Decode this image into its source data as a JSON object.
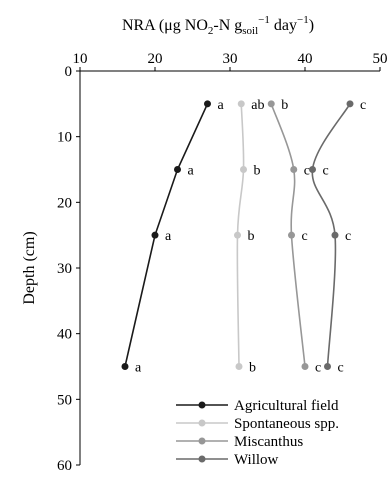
{
  "chart_data": {
    "type": "line",
    "title": "",
    "xlabel_parts": {
      "prefix": "NRA (μg NO",
      "sub1": "2",
      "mid": "-N g",
      "sub2": "soil",
      "sup": "−1",
      "suffix": " day",
      "sup2": "−1",
      "end": ")"
    },
    "ylabel": "Depth (cm)",
    "xlim": [
      10,
      50
    ],
    "ylim": [
      0,
      60
    ],
    "y_inverted": true,
    "x_axis_position": "top",
    "xticks": [
      10,
      20,
      30,
      40,
      50
    ],
    "yticks": [
      0,
      10,
      20,
      30,
      40,
      50,
      60
    ],
    "grid": false,
    "legend_position": "bottom-right",
    "depths": [
      5,
      15,
      25,
      45
    ],
    "series": [
      {
        "name": "Agricultural field",
        "color": "#1a1a1a",
        "values": [
          27,
          23,
          20,
          16
        ],
        "letters": [
          "a",
          "a",
          "a",
          "a"
        ]
      },
      {
        "name": "Spontaneous spp.",
        "color": "#c8c8c8",
        "values": [
          31.5,
          31.8,
          31,
          31.2
        ],
        "letters": [
          "ab",
          "b",
          "b",
          "b"
        ]
      },
      {
        "name": "Miscanthus",
        "color": "#979797",
        "values": [
          35.5,
          38.5,
          38.2,
          40
        ],
        "letters": [
          "b",
          "c",
          "c",
          "c"
        ]
      },
      {
        "name": "Willow",
        "color": "#6a6a6a",
        "values": [
          46,
          41,
          44,
          43
        ],
        "letters": [
          "c",
          "c",
          "c",
          "c"
        ]
      }
    ]
  }
}
